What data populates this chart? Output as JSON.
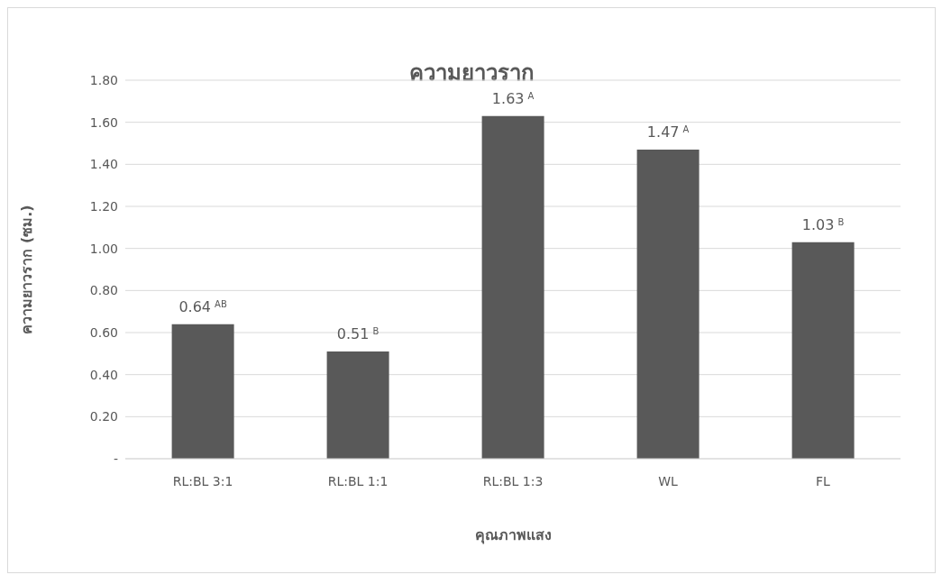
{
  "chart_data": {
    "type": "bar",
    "title": "ความยาวราก",
    "xlabel": "คุณภาพแสง",
    "ylabel": "ความยาวราก (ซม.)",
    "categories": [
      "RL:BL 3:1",
      "RL:BL 1:1",
      "RL:BL 1:3",
      "WL",
      "FL"
    ],
    "values": [
      0.64,
      0.51,
      1.63,
      1.47,
      1.03
    ],
    "value_labels": [
      "0.64$^{AB}$",
      "0.51$^{B}$",
      "1.63$^{A}$",
      "1.47$^{A}$",
      "1.03$^{B}$"
    ],
    "color": "#595959",
    "ylim": [
      0,
      1.8
    ],
    "yticks": [
      {
        "value": 0,
        "label": "-"
      },
      {
        "value": 0.2,
        "label": "0.20"
      },
      {
        "value": 0.4,
        "label": "0.40"
      },
      {
        "value": 0.6,
        "label": "0.60"
      },
      {
        "value": 0.8,
        "label": "0.80"
      },
      {
        "value": 1.0,
        "label": "1.00"
      },
      {
        "value": 1.2,
        "label": "1.20"
      },
      {
        "value": 1.4,
        "label": "1.40"
      },
      {
        "value": 1.6,
        "label": "1.60"
      },
      {
        "value": 1.8,
        "label": "1.80"
      }
    ],
    "grid": "y",
    "legend": false
  }
}
